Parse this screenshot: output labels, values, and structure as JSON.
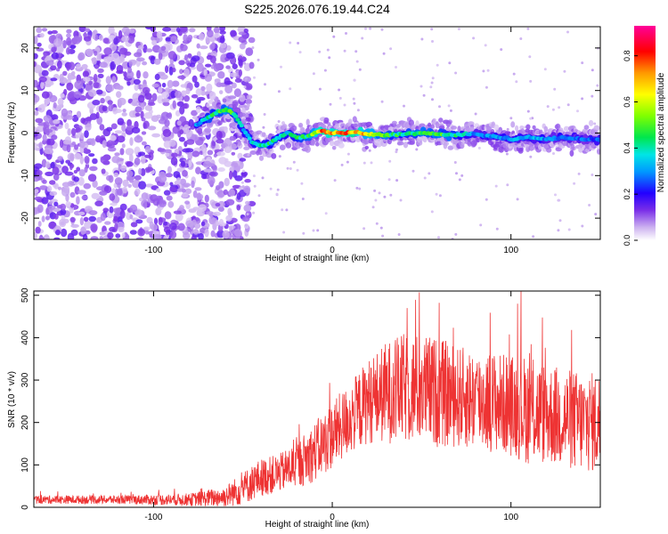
{
  "title": "S225.2026.076.19.44.C24",
  "chart_data": [
    {
      "type": "heatmap",
      "name": "spectrogram",
      "xlabel": "Height of straight line (km)",
      "ylabel": "Frequency (Hz)",
      "xlim": [
        -167,
        150
      ],
      "ylim": [
        -25,
        25
      ],
      "xticks": [
        -100,
        0,
        100
      ],
      "yticks": [
        20,
        10,
        0,
        -10,
        -20
      ],
      "noise_region_x": [
        -167,
        -53
      ],
      "signal_track": {
        "x": [
          -76,
          -70,
          -64,
          -58,
          -54,
          -50,
          -45,
          -40,
          -35,
          -30,
          -25,
          -20,
          -15,
          -10,
          -5,
          0,
          5,
          10,
          15,
          20,
          30,
          40,
          50,
          60,
          70,
          80,
          90,
          100,
          110,
          120,
          130,
          140,
          150
        ],
        "freq": [
          2,
          3.5,
          5,
          5.5,
          4,
          1,
          -2,
          -3,
          -2.5,
          -1,
          0,
          -1,
          -1,
          0,
          0.5,
          0,
          0,
          0.2,
          0,
          -0.3,
          -0.5,
          -0.2,
          0,
          -0.3,
          -0.5,
          -0.2,
          -0.8,
          -1.5,
          -1,
          -1.5,
          -1,
          -1.5,
          -1.5
        ],
        "amplitude": [
          0.35,
          0.45,
          0.55,
          0.6,
          0.5,
          0.4,
          0.4,
          0.5,
          0.5,
          0.45,
          0.45,
          0.5,
          0.5,
          0.7,
          0.9,
          0.8,
          0.85,
          0.9,
          0.85,
          0.7,
          0.55,
          0.5,
          0.55,
          0.55,
          0.5,
          0.35,
          0.35,
          0.35,
          0.4,
          0.35,
          0.35,
          0.3,
          0.3
        ]
      },
      "colorbar": {
        "label": "Normalized spectral amplitude",
        "ticks": [
          0.0,
          0.2,
          0.4,
          0.6,
          0.8
        ],
        "range": [
          0,
          0.93
        ]
      }
    },
    {
      "type": "line",
      "name": "snr",
      "xlabel": "Height of straight line (km)",
      "ylabel": "SNR (10 * v/v)",
      "xlim": [
        -167,
        150
      ],
      "ylim": [
        0,
        510
      ],
      "xticks": [
        -100,
        0,
        100
      ],
      "yticks": [
        0,
        100,
        200,
        300,
        400,
        500
      ],
      "color": "#ee3333",
      "envelope": {
        "x": [
          -167,
          -120,
          -80,
          -60,
          -50,
          -40,
          -30,
          -20,
          -10,
          0,
          10,
          20,
          30,
          40,
          50,
          60,
          70,
          80,
          90,
          100,
          110,
          120,
          130,
          140,
          150
        ],
        "mean": [
          18,
          18,
          18,
          25,
          45,
          70,
          80,
          100,
          130,
          170,
          210,
          250,
          270,
          280,
          280,
          270,
          260,
          255,
          250,
          240,
          230,
          220,
          210,
          200,
          200
        ],
        "spread": [
          10,
          10,
          15,
          25,
          40,
          45,
          45,
          55,
          70,
          80,
          85,
          100,
          120,
          130,
          130,
          130,
          120,
          120,
          120,
          120,
          130,
          120,
          120,
          120,
          120
        ]
      }
    }
  ]
}
